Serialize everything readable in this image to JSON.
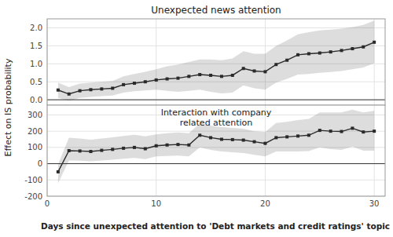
{
  "chart_data": [
    {
      "type": "line",
      "title": "Unexpected news attention",
      "y_label": "Effect on IS probability",
      "x": [
        1,
        2,
        3,
        4,
        5,
        6,
        7,
        8,
        9,
        10,
        11,
        12,
        13,
        14,
        15,
        16,
        17,
        18,
        19,
        20,
        21,
        22,
        23,
        24,
        25,
        26,
        27,
        28,
        29,
        30
      ],
      "series": [
        {
          "color": "#2a2a2a",
          "marker": "square",
          "values": [
            0.27,
            0.16,
            0.25,
            0.28,
            0.3,
            0.32,
            0.42,
            0.46,
            0.5,
            0.55,
            0.58,
            0.6,
            0.65,
            0.7,
            0.68,
            0.65,
            0.68,
            0.87,
            0.8,
            0.78,
            0.98,
            1.1,
            1.25,
            1.28,
            1.3,
            1.33,
            1.37,
            1.42,
            1.47,
            1.6
          ],
          "ci_low": [
            0.05,
            -0.03,
            0.05,
            0.08,
            0.1,
            0.12,
            0.2,
            0.24,
            0.26,
            0.28,
            0.25,
            0.22,
            0.25,
            0.28,
            0.22,
            0.18,
            0.2,
            0.4,
            0.32,
            0.28,
            0.48,
            0.58,
            0.7,
            0.72,
            0.75,
            0.77,
            0.8,
            0.85,
            0.9,
            1.02
          ],
          "ci_high": [
            0.48,
            0.35,
            0.45,
            0.48,
            0.5,
            0.52,
            0.65,
            0.72,
            0.78,
            0.85,
            0.93,
            0.98,
            1.05,
            1.12,
            1.12,
            1.1,
            1.15,
            1.35,
            1.28,
            1.28,
            1.5,
            1.65,
            1.82,
            1.88,
            1.93,
            1.95,
            1.98,
            2.02,
            2.08,
            2.2
          ]
        }
      ],
      "xlim": [
        0,
        31
      ],
      "xticks": [
        0,
        10,
        20,
        30
      ],
      "ylim": [
        -0.15,
        2.25
      ],
      "yticks": [
        {
          "value": 0.0,
          "label": "0.0"
        },
        0.5,
        {
          "value": 1.0,
          "label": "1.0"
        },
        1.5,
        {
          "value": 2.0,
          "label": "2.0"
        }
      ],
      "grid": true,
      "tick_labels": "y"
    },
    {
      "type": "line",
      "title": "Interaction with company\nrelated attention",
      "x_label": "Days since unexpected attention to 'Debt markets and credit ratings' topic",
      "x": [
        1,
        2,
        3,
        4,
        5,
        6,
        7,
        8,
        9,
        10,
        11,
        12,
        13,
        14,
        15,
        16,
        17,
        18,
        19,
        20,
        21,
        22,
        23,
        24,
        25,
        26,
        27,
        28,
        29,
        30
      ],
      "series": [
        {
          "color": "#2a2a2a",
          "marker": "square",
          "values": [
            -50,
            80,
            78,
            75,
            82,
            88,
            95,
            100,
            92,
            110,
            115,
            118,
            115,
            175,
            160,
            150,
            148,
            145,
            135,
            125,
            160,
            165,
            170,
            175,
            205,
            200,
            198,
            218,
            195,
            200
          ],
          "ci_low": [
            -120,
            20,
            18,
            15,
            20,
            25,
            30,
            35,
            28,
            45,
            48,
            50,
            45,
            100,
            85,
            75,
            70,
            65,
            55,
            45,
            75,
            75,
            75,
            78,
            100,
            90,
            85,
            105,
            80,
            80
          ],
          "ci_high": [
            -5,
            160,
            155,
            148,
            155,
            162,
            170,
            178,
            168,
            180,
            188,
            192,
            188,
            248,
            235,
            225,
            220,
            215,
            200,
            195,
            250,
            258,
            268,
            275,
            315,
            315,
            315,
            332,
            315,
            325
          ]
        }
      ],
      "xlim": [
        0,
        31
      ],
      "xticks": [
        0,
        10,
        20,
        30
      ],
      "ylim": [
        -200,
        360
      ],
      "yticks": [
        -200,
        -100,
        0,
        100,
        200,
        300
      ],
      "grid": true
    }
  ]
}
